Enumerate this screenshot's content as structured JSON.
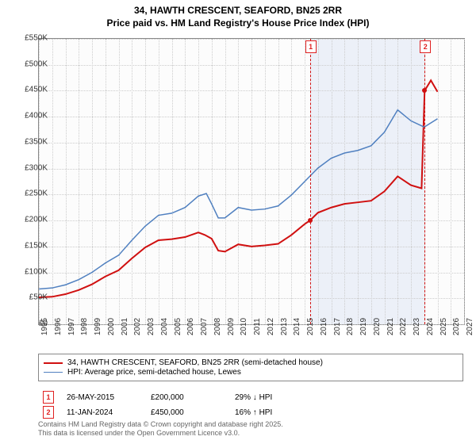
{
  "title_line1": "34, HAWTH CRESCENT, SEAFORD, BN25 2RR",
  "title_line2": "Price paid vs. HM Land Registry's House Price Index (HPI)",
  "chart": {
    "type": "line",
    "x_years": [
      1995,
      1996,
      1997,
      1998,
      1999,
      2000,
      2001,
      2002,
      2003,
      2004,
      2005,
      2006,
      2007,
      2008,
      2009,
      2010,
      2011,
      2012,
      2013,
      2014,
      2015,
      2016,
      2017,
      2018,
      2019,
      2020,
      2021,
      2022,
      2023,
      2024,
      2025,
      2026,
      2027
    ],
    "ylim": [
      0,
      550
    ],
    "ytick_step": 50,
    "ytick_labels": [
      "£0",
      "£50K",
      "£100K",
      "£150K",
      "£200K",
      "£250K",
      "£300K",
      "£350K",
      "£400K",
      "£450K",
      "£500K",
      "£550K"
    ],
    "grid_color": "#cccccc",
    "background_color": "#fcfcfc",
    "shade_start_year": 2015.4,
    "shade_end_year": 2024.03,
    "series": [
      {
        "name": "property",
        "label": "34, HAWTH CRESCENT, SEAFORD, BN25 2RR (semi-detached house)",
        "color": "#d01010",
        "width": 2,
        "points": [
          [
            1995,
            52
          ],
          [
            1996,
            53
          ],
          [
            1997,
            58
          ],
          [
            1998,
            66
          ],
          [
            1999,
            77
          ],
          [
            2000,
            92
          ],
          [
            2001,
            104
          ],
          [
            2002,
            127
          ],
          [
            2003,
            148
          ],
          [
            2004,
            162
          ],
          [
            2005,
            164
          ],
          [
            2006,
            168
          ],
          [
            2007,
            177
          ],
          [
            2007.5,
            172
          ],
          [
            2008,
            165
          ],
          [
            2008.5,
            142
          ],
          [
            2009,
            140
          ],
          [
            2010,
            154
          ],
          [
            2011,
            150
          ],
          [
            2012,
            152
          ],
          [
            2013,
            155
          ],
          [
            2014,
            172
          ],
          [
            2015,
            193
          ],
          [
            2015.4,
            200
          ],
          [
            2016,
            215
          ],
          [
            2017,
            225
          ],
          [
            2018,
            232
          ],
          [
            2019,
            235
          ],
          [
            2020,
            238
          ],
          [
            2021,
            256
          ],
          [
            2022,
            285
          ],
          [
            2023,
            268
          ],
          [
            2023.8,
            262
          ],
          [
            2024.03,
            450
          ],
          [
            2024.5,
            470
          ],
          [
            2025,
            448
          ]
        ]
      },
      {
        "name": "hpi",
        "label": "HPI: Average price, semi-detached house, Lewes",
        "color": "#5080c0",
        "width": 1.5,
        "points": [
          [
            1995,
            68
          ],
          [
            1996,
            70
          ],
          [
            1997,
            76
          ],
          [
            1998,
            86
          ],
          [
            1999,
            100
          ],
          [
            2000,
            118
          ],
          [
            2001,
            133
          ],
          [
            2002,
            162
          ],
          [
            2003,
            189
          ],
          [
            2004,
            210
          ],
          [
            2005,
            214
          ],
          [
            2006,
            225
          ],
          [
            2007,
            247
          ],
          [
            2007.6,
            252
          ],
          [
            2008,
            232
          ],
          [
            2008.5,
            205
          ],
          [
            2009,
            205
          ],
          [
            2010,
            225
          ],
          [
            2011,
            220
          ],
          [
            2012,
            222
          ],
          [
            2013,
            228
          ],
          [
            2014,
            249
          ],
          [
            2015,
            275
          ],
          [
            2016,
            301
          ],
          [
            2017,
            320
          ],
          [
            2018,
            330
          ],
          [
            2019,
            335
          ],
          [
            2020,
            344
          ],
          [
            2021,
            370
          ],
          [
            2022,
            413
          ],
          [
            2023,
            392
          ],
          [
            2024,
            380
          ],
          [
            2025,
            396
          ]
        ]
      }
    ],
    "markers": [
      {
        "id": "1",
        "year": 2015.4,
        "y_value": 200,
        "box_top": true
      },
      {
        "id": "2",
        "year": 2024.03,
        "y_value": 450,
        "box_top": true
      }
    ]
  },
  "legend": {
    "rows": [
      {
        "color": "#d01010",
        "width": 2,
        "label_path": "chart.series.0.label"
      },
      {
        "color": "#5080c0",
        "width": 1.5,
        "label_path": "chart.series.1.label"
      }
    ]
  },
  "events": [
    {
      "id": "1",
      "date": "26-MAY-2015",
      "price": "£200,000",
      "delta": "29% ↓ HPI"
    },
    {
      "id": "2",
      "date": "11-JAN-2024",
      "price": "£450,000",
      "delta": "16% ↑ HPI"
    }
  ],
  "footer_line1": "Contains HM Land Registry data © Crown copyright and database right 2025.",
  "footer_line2": "This data is licensed under the Open Government Licence v3.0."
}
